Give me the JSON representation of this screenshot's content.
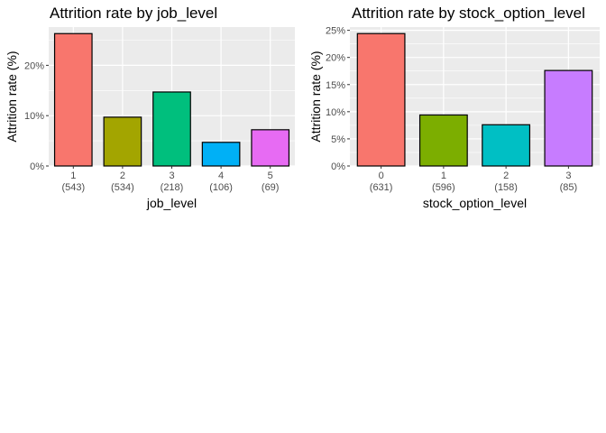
{
  "chart_data": [
    {
      "type": "bar",
      "title": "Attrition rate by job_level",
      "xlabel": "job_level",
      "ylabel": "Attrition rate (%)",
      "categories": [
        "1",
        "2",
        "3",
        "4",
        "5"
      ],
      "counts": [
        "(543)",
        "(534)",
        "(218)",
        "(106)",
        "(69)"
      ],
      "values": [
        26.3,
        9.7,
        14.7,
        4.7,
        7.2
      ],
      "colors": [
        "#F8766D",
        "#A3A500",
        "#00BF7D",
        "#00B0F6",
        "#E76BF3"
      ],
      "ylim": [
        0,
        27.6
      ],
      "yticks": [
        0,
        10,
        20
      ],
      "ytick_labels": [
        "0%",
        "10%",
        "20%"
      ],
      "grid": true
    },
    {
      "type": "bar",
      "title": "Attrition rate by stock_option_level",
      "xlabel": "stock_option_level",
      "ylabel": "Attrition rate (%)",
      "categories": [
        "0",
        "1",
        "2",
        "3"
      ],
      "counts": [
        "(631)",
        "(596)",
        "(158)",
        "(85)"
      ],
      "values": [
        24.4,
        9.4,
        7.6,
        17.6
      ],
      "colors": [
        "#F8766D",
        "#7CAE00",
        "#00BFC4",
        "#C77CFF"
      ],
      "ylim": [
        0,
        25.6
      ],
      "yticks": [
        0,
        5,
        10,
        15,
        20,
        25
      ],
      "ytick_labels": [
        "0%",
        "5%",
        "10%",
        "15%",
        "20%",
        "25%"
      ],
      "grid": true
    }
  ]
}
